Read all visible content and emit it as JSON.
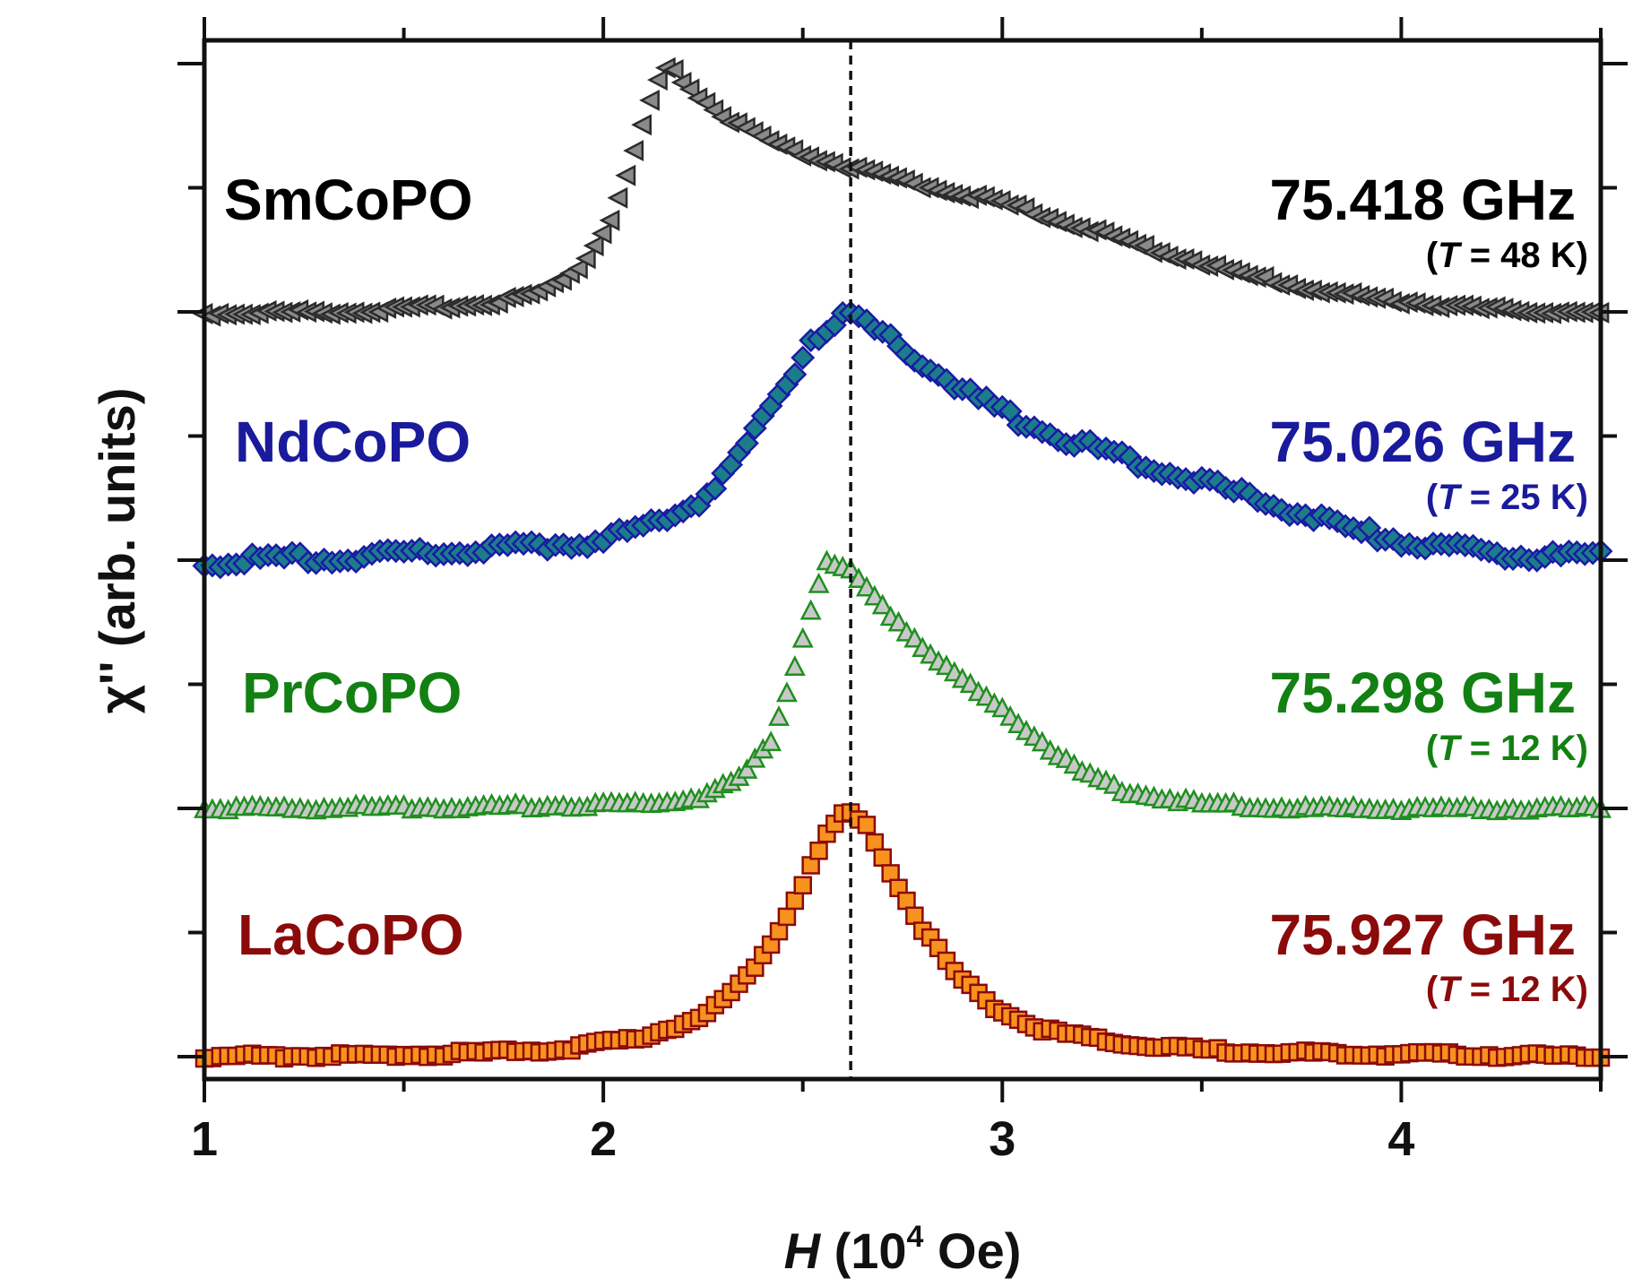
{
  "chart_data": {
    "type": "scatter",
    "title": "",
    "xlabel_italic": "H",
    "xlabel_open": " (10",
    "xlabel_exp": "4",
    "xlabel_close": " Oe)",
    "ylabel": "χ'' (arb. units)",
    "xlim": [
      1,
      4.5
    ],
    "x_ticks": [
      1,
      2,
      3,
      4
    ],
    "x_tick_labels": [
      "1",
      "2",
      "3",
      "4"
    ],
    "reference_line_x": 2.62,
    "series": [
      {
        "name": "SmCoPO",
        "frequency": "75.418 GHz",
        "temp_prefix": "(",
        "temp_var": "T",
        "temp_value": " = 48 K)",
        "color": "#000000",
        "fill": "#8a8a8a",
        "stroke": "#2b2b2b",
        "marker": "triangle-left",
        "baseline": 0,
        "peak_height": 1,
        "points": [
          [
            1.0,
            0.0
          ],
          [
            1.4,
            0.01
          ],
          [
            1.7,
            0.04
          ],
          [
            1.85,
            0.09
          ],
          [
            1.95,
            0.2
          ],
          [
            2.02,
            0.38
          ],
          [
            2.07,
            0.6
          ],
          [
            2.11,
            0.82
          ],
          [
            2.15,
            0.98
          ],
          [
            2.17,
            1.0
          ],
          [
            2.2,
            0.94
          ],
          [
            2.3,
            0.8
          ],
          [
            2.45,
            0.67
          ],
          [
            2.6,
            0.6
          ],
          [
            2.8,
            0.52
          ],
          [
            3.0,
            0.45
          ],
          [
            3.2,
            0.35
          ],
          [
            3.4,
            0.25
          ],
          [
            3.6,
            0.16
          ],
          [
            3.8,
            0.09
          ],
          [
            4.0,
            0.05
          ],
          [
            4.2,
            0.02
          ],
          [
            4.5,
            0.0
          ]
        ]
      },
      {
        "name": "NdCoPO",
        "frequency": "75.026 GHz",
        "temp_prefix": "(",
        "temp_var": "T",
        "temp_value": " = 25 K)",
        "color": "#1a1a9c",
        "fill": "#1c7d8a",
        "stroke": "#1a1aa6",
        "marker": "diamond",
        "baseline": 0,
        "peak_height": 1,
        "points": [
          [
            1.0,
            0.0
          ],
          [
            1.5,
            0.03
          ],
          [
            1.8,
            0.06
          ],
          [
            2.0,
            0.09
          ],
          [
            2.15,
            0.16
          ],
          [
            2.25,
            0.26
          ],
          [
            2.35,
            0.44
          ],
          [
            2.45,
            0.7
          ],
          [
            2.52,
            0.9
          ],
          [
            2.58,
            0.98
          ],
          [
            2.62,
            1.0
          ],
          [
            2.7,
            0.92
          ],
          [
            2.8,
            0.8
          ],
          [
            2.95,
            0.65
          ],
          [
            3.1,
            0.53
          ],
          [
            3.3,
            0.43
          ],
          [
            3.5,
            0.33
          ],
          [
            3.7,
            0.22
          ],
          [
            3.9,
            0.12
          ],
          [
            4.1,
            0.06
          ],
          [
            4.3,
            0.03
          ],
          [
            4.5,
            0.02
          ]
        ]
      },
      {
        "name": "PrCoPO",
        "frequency": "75.298 GHz",
        "temp_prefix": "(",
        "temp_var": "T",
        "temp_value": " = 12 K)",
        "color": "#128012",
        "fill": "#c8c8c8",
        "stroke": "#1f8f1f",
        "marker": "triangle-up",
        "baseline": 0,
        "peak_height": 1,
        "points": [
          [
            1.0,
            0.0
          ],
          [
            1.8,
            0.01
          ],
          [
            2.1,
            0.02
          ],
          [
            2.25,
            0.05
          ],
          [
            2.35,
            0.13
          ],
          [
            2.42,
            0.28
          ],
          [
            2.47,
            0.52
          ],
          [
            2.51,
            0.76
          ],
          [
            2.54,
            0.92
          ],
          [
            2.56,
            1.0
          ],
          [
            2.62,
            0.96
          ],
          [
            2.7,
            0.82
          ],
          [
            2.8,
            0.66
          ],
          [
            2.9,
            0.52
          ],
          [
            3.0,
            0.4
          ],
          [
            3.1,
            0.27
          ],
          [
            3.2,
            0.15
          ],
          [
            3.3,
            0.07
          ],
          [
            3.5,
            0.02
          ],
          [
            3.8,
            0.0
          ],
          [
            4.5,
            0.0
          ]
        ]
      },
      {
        "name": "LaCoPO",
        "frequency": "75.927 GHz",
        "temp_prefix": "(",
        "temp_var": "T",
        "temp_value": " = 12 K)",
        "color": "#8b0a0a",
        "fill": "#f7921e",
        "stroke": "#8b0a0a",
        "marker": "square",
        "baseline": 0,
        "peak_height": 1,
        "points": [
          [
            1.0,
            0.0
          ],
          [
            1.6,
            0.01
          ],
          [
            1.9,
            0.03
          ],
          [
            2.1,
            0.08
          ],
          [
            2.25,
            0.16
          ],
          [
            2.35,
            0.3
          ],
          [
            2.43,
            0.48
          ],
          [
            2.5,
            0.7
          ],
          [
            2.56,
            0.9
          ],
          [
            2.61,
            1.0
          ],
          [
            2.66,
            0.93
          ],
          [
            2.72,
            0.75
          ],
          [
            2.8,
            0.52
          ],
          [
            2.88,
            0.34
          ],
          [
            2.98,
            0.2
          ],
          [
            3.1,
            0.11
          ],
          [
            3.3,
            0.05
          ],
          [
            3.6,
            0.02
          ],
          [
            4.0,
            0.01
          ],
          [
            4.5,
            0.0
          ]
        ]
      }
    ]
  }
}
